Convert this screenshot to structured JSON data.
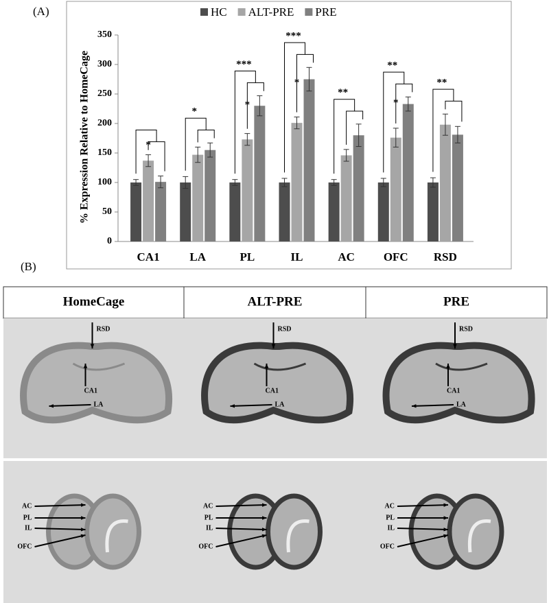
{
  "panel_labels": [
    "(A)",
    "(B)"
  ],
  "chart_data": {
    "type": "bar",
    "y_label": "% Expression Relative to HomeCage",
    "categories": [
      "CA1",
      "LA",
      "PL",
      "IL",
      "AC",
      "OFC",
      "RSD"
    ],
    "series": [
      {
        "name": "HC",
        "color": "#4d4d4d",
        "values": [
          100,
          100,
          100,
          100,
          100,
          100,
          100
        ],
        "errors": [
          5,
          10,
          5,
          7,
          5,
          7,
          8
        ]
      },
      {
        "name": "ALT-PRE",
        "color": "#a6a6a6",
        "values": [
          137,
          147,
          173,
          201,
          146,
          176,
          198
        ],
        "errors": [
          10,
          13,
          10,
          10,
          10,
          16,
          18
        ]
      },
      {
        "name": "PRE",
        "color": "#808080",
        "values": [
          101,
          155,
          230,
          275,
          180,
          233,
          181
        ],
        "errors": [
          10,
          12,
          17,
          20,
          19,
          12,
          14
        ]
      }
    ],
    "ylim": [
      0,
      350
    ],
    "yticks": [
      0,
      50,
      100,
      150,
      200,
      250,
      300,
      350
    ],
    "significance": [
      {
        "category": "CA1",
        "pairwise": "*"
      },
      {
        "category": "LA",
        "overall": "*"
      },
      {
        "category": "PL",
        "overall": "***",
        "pairwise": "*"
      },
      {
        "category": "IL",
        "overall": "***",
        "pairwise": "*"
      },
      {
        "category": "AC",
        "overall": "**"
      },
      {
        "category": "OFC",
        "overall": "**",
        "pairwise": "*"
      },
      {
        "category": "RSD",
        "overall": "**"
      }
    ]
  },
  "images": {
    "columns": [
      "HomeCage",
      "ALT-PRE",
      "PRE"
    ],
    "top_labels": [
      "RSD",
      "CA1",
      "LA"
    ],
    "bottom_labels": [
      "AC",
      "PL",
      "IL",
      "OFC"
    ]
  }
}
